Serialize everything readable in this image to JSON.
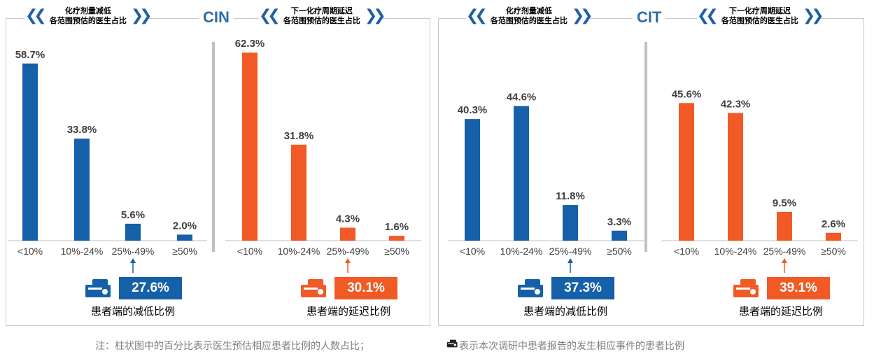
{
  "sections": [
    {
      "title": "CIN",
      "left_header": [
        "化疗剂量减低",
        "各范围预估的医生占比"
      ],
      "right_header": [
        "下一化疗周期延迟",
        "各范围预估的医生占比"
      ],
      "left_summary": {
        "value": "27.6%",
        "label": "患者端的减低比例"
      },
      "right_summary": {
        "value": "30.1%",
        "label": "患者端的延迟比例"
      }
    },
    {
      "title": "CIT",
      "left_header": [
        "化疗剂量减低",
        "各范围预估的医生占比"
      ],
      "right_header": [
        "下一化疗周期延迟",
        "各范围预估的医生占比"
      ],
      "left_summary": {
        "value": "37.3%",
        "label": "患者端的减低比例"
      },
      "right_summary": {
        "value": "39.1%",
        "label": "患者端的延迟比例"
      }
    }
  ],
  "colors": {
    "blue": "#1560a8",
    "orange": "#f15a24",
    "chevron": "#1f5fa6",
    "title": "#2e6da4"
  },
  "footnote": {
    "prefix": "注：柱状图中的百分比表示医生预估相应患者比例的人数占比；",
    "suffix": "表示本次调研中患者报告的发生相应事件的患者比例",
    "icon": "pill-bottle-icon"
  },
  "chart_data": [
    {
      "type": "bar",
      "group": "CIN",
      "title": "化疗剂量减低 各范围预估的医生占比",
      "categories": [
        "<10%",
        "10%-24%",
        "25%-49%",
        "≥50%"
      ],
      "values": [
        58.7,
        33.8,
        5.6,
        2.0
      ],
      "labels": [
        "58.7%",
        "33.8%",
        "5.6%",
        "2.0%"
      ],
      "color": "#1560a8",
      "ylim": [
        0,
        70
      ],
      "grid": false
    },
    {
      "type": "bar",
      "group": "CIN",
      "title": "下一化疗周期延迟 各范围预估的医生占比",
      "categories": [
        "<10%",
        "10%-24%",
        "25%-49%",
        "≥50%"
      ],
      "values": [
        62.3,
        31.8,
        4.3,
        1.6
      ],
      "labels": [
        "62.3%",
        "31.8%",
        "4.3%",
        "1.6%"
      ],
      "color": "#f15a24",
      "ylim": [
        0,
        70
      ],
      "grid": false
    },
    {
      "type": "bar",
      "group": "CIT",
      "title": "化疗剂量减低 各范围预估的医生占比",
      "categories": [
        "<10%",
        "10%-24%",
        "25%-49%",
        "≥50%"
      ],
      "values": [
        40.3,
        44.6,
        11.8,
        3.3
      ],
      "labels": [
        "40.3%",
        "44.6%",
        "11.8%",
        "3.3%"
      ],
      "color": "#1560a8",
      "ylim": [
        0,
        70
      ],
      "grid": false
    },
    {
      "type": "bar",
      "group": "CIT",
      "title": "下一化疗周期延迟 各范围预估的医生占比",
      "categories": [
        "<10%",
        "10%-24%",
        "25%-49%",
        "≥50%"
      ],
      "values": [
        45.6,
        42.3,
        9.5,
        2.6
      ],
      "labels": [
        "45.6%",
        "42.3%",
        "9.5%",
        "2.6%"
      ],
      "color": "#f15a24",
      "ylim": [
        0,
        70
      ],
      "grid": false
    }
  ]
}
